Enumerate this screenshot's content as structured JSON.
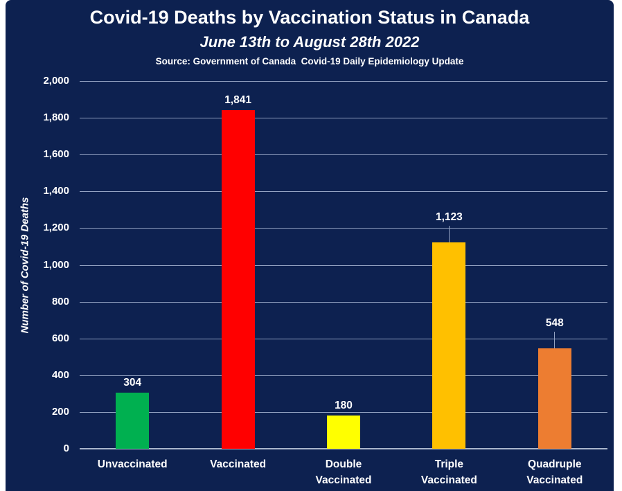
{
  "page": {
    "background": "#ffffff"
  },
  "chart_data": {
    "type": "bar",
    "title": "Covid-19 Deaths by Vaccination Status in Canada",
    "subtitle": "June 13th to August 28th 2022",
    "source": "Source: Government of Canada  Covid-19 Daily Epidemiology Update",
    "ylabel": "Number of Covid-19 Deaths",
    "xlabel": "",
    "ylim": [
      0,
      2000
    ],
    "ytick_step": 200,
    "grid": true,
    "legend": false,
    "categories": [
      "Unvaccinated",
      "Vaccinated",
      "Double Vaccinated",
      "Triple Vaccinated",
      "Quadruple Vaccinated"
    ],
    "values": [
      304,
      1841,
      180,
      1123,
      548
    ],
    "value_labels": [
      "304",
      "1,841",
      "180",
      "1,123",
      "548"
    ],
    "bar_colors": [
      "#00b050",
      "#ff0000",
      "#ffff00",
      "#ffc000",
      "#ed7d31"
    ],
    "callout_labels": [
      false,
      false,
      false,
      true,
      true
    ],
    "colors": {
      "panel_background": "#0d2150",
      "grid_line": "#93a2c2",
      "axis_line": "#aab6cc",
      "text": "#ffffff"
    }
  }
}
